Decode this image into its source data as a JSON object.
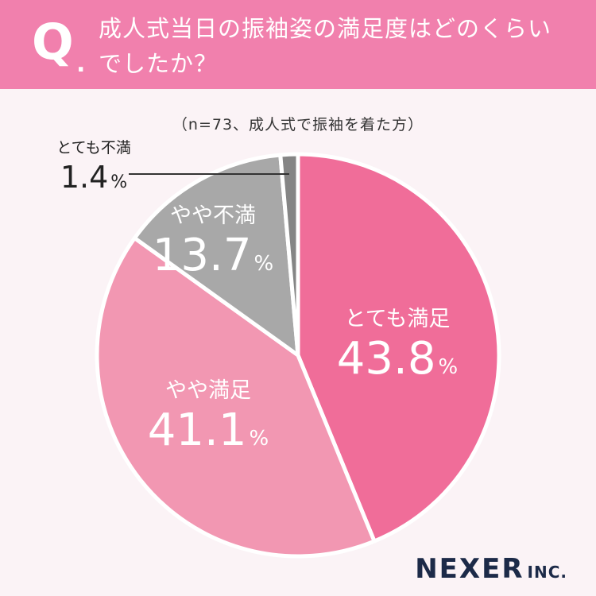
{
  "header": {
    "q_mark": "Q",
    "q_dot": ".",
    "question_line1": "成人式当日の振袖姿の満足度はどのくらい",
    "question_line2": "でしたか？"
  },
  "sample_note": "（n=73、成人式で振袖を着た方）",
  "chart_data": {
    "type": "pie",
    "title": "成人式当日の振袖姿の満足度はどのくらいでしたか？",
    "start": "12 o'clock, clockwise",
    "slices": [
      {
        "label": "とても満足",
        "value": 43.8,
        "value_text": "43.8",
        "unit": "%",
        "color": "#f06d99"
      },
      {
        "label": "やや満足",
        "value": 41.1,
        "value_text": "41.1",
        "unit": "%",
        "color": "#f297b2"
      },
      {
        "label": "やや不満",
        "value": 13.7,
        "value_text": "13.7",
        "unit": "%",
        "color": "#a8a8a8"
      },
      {
        "label": "とても不満",
        "value": 1.4,
        "value_text": "1.4",
        "unit": "%",
        "color": "#858585"
      }
    ]
  },
  "logo": {
    "main": "NEXER",
    "suffix": "INC."
  }
}
